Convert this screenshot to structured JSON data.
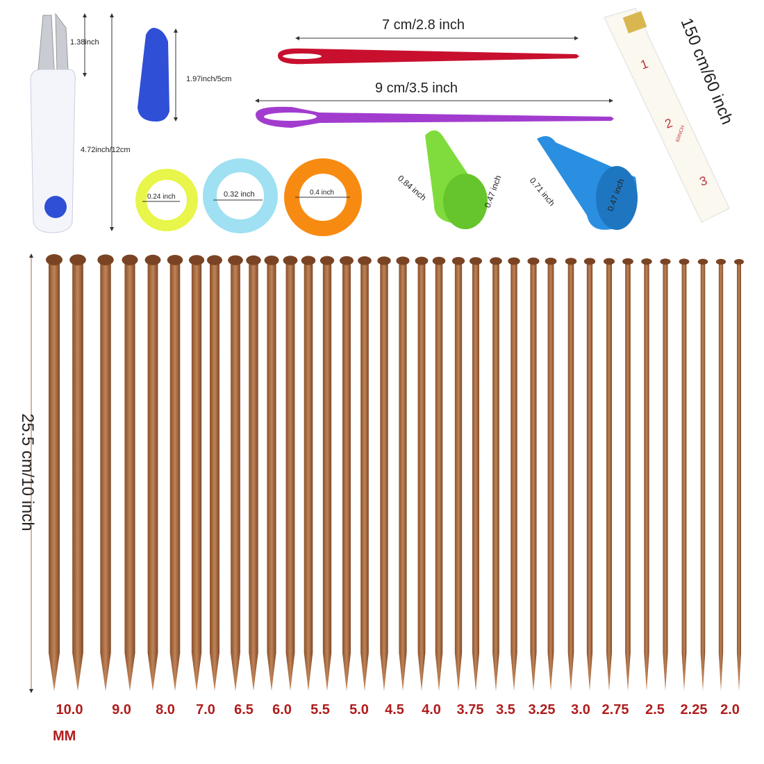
{
  "scissors": {
    "blade_label": "1.38inch",
    "length_label": "4.72inch/12cm"
  },
  "cover": {
    "length_label": "1.97inch/5cm",
    "color": "#2f4fd6"
  },
  "rings": [
    {
      "label": "0.24 inch",
      "color": "#e8f54a"
    },
    {
      "label": "0.32 inch",
      "color": "#9fe0f2"
    },
    {
      "label": "0.4 inch",
      "color": "#f78b12"
    }
  ],
  "yarn_needles": [
    {
      "label": "7 cm/2.8 inch",
      "color": "#c8102e"
    },
    {
      "label": "9 cm/3.5 inch",
      "color": "#a23ccf"
    }
  ],
  "point_protectors": [
    {
      "width_label": "0.84 inch",
      "height_label": "0.47 inch",
      "color": "#7fdc3c"
    },
    {
      "width_label": "0.71 inch",
      "height_label": "0.47 inch",
      "color": "#2a8fe0"
    }
  ],
  "tape_measure": {
    "label": "150 cm/60 inch",
    "marks": [
      "1",
      "2",
      "3"
    ],
    "brand": "60INCH"
  },
  "knitting_needles": {
    "length_label": "25.5 cm/10 inch",
    "unit_label": "MM",
    "sizes": [
      "10.0",
      "9.0",
      "8.0",
      "7.0",
      "6.5",
      "6.0",
      "5.5",
      "5.0",
      "4.5",
      "4.0",
      "3.75",
      "3.5",
      "3.25",
      "3.0",
      "2.75",
      "2.5",
      "2.25",
      "2.0"
    ],
    "wood_color": "#a8683f",
    "label_color": "#b01c1c"
  }
}
